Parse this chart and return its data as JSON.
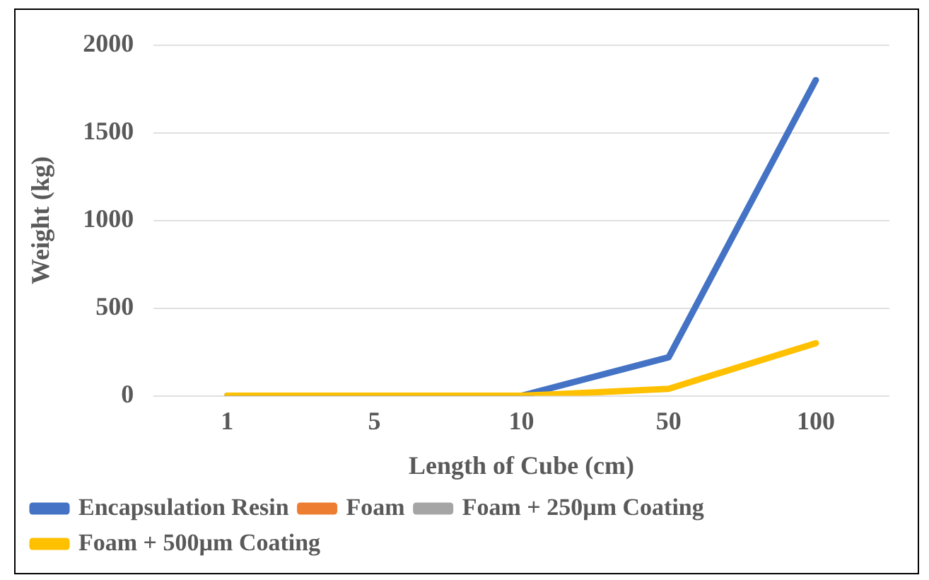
{
  "chart_data": {
    "type": "line",
    "xlabel": "Length of Cube (cm)",
    "ylabel": "Weight (kg)",
    "categories": [
      "1",
      "5",
      "10",
      "50",
      "100"
    ],
    "series": [
      {
        "name": "Encapsulation Resin",
        "color": "#4472c4",
        "values": [
          0,
          0,
          0,
          220,
          1800
        ]
      },
      {
        "name": "Foam",
        "color": "#ed7d31",
        "values": [
          null,
          null,
          null,
          null,
          null
        ]
      },
      {
        "name": "Foam + 250µm Coating",
        "color": "#a5a5a5",
        "values": [
          null,
          null,
          null,
          null,
          null
        ]
      },
      {
        "name": "Foam + 500µm Coating",
        "color": "#ffc000",
        "values": [
          0,
          0,
          0,
          40,
          300
        ]
      }
    ],
    "ylim": [
      0,
      2000
    ],
    "yticks": [
      0,
      500,
      1000,
      1500,
      2000
    ],
    "grid": "y",
    "legend": "bottom",
    "marker": "none",
    "line_style": "solid"
  }
}
